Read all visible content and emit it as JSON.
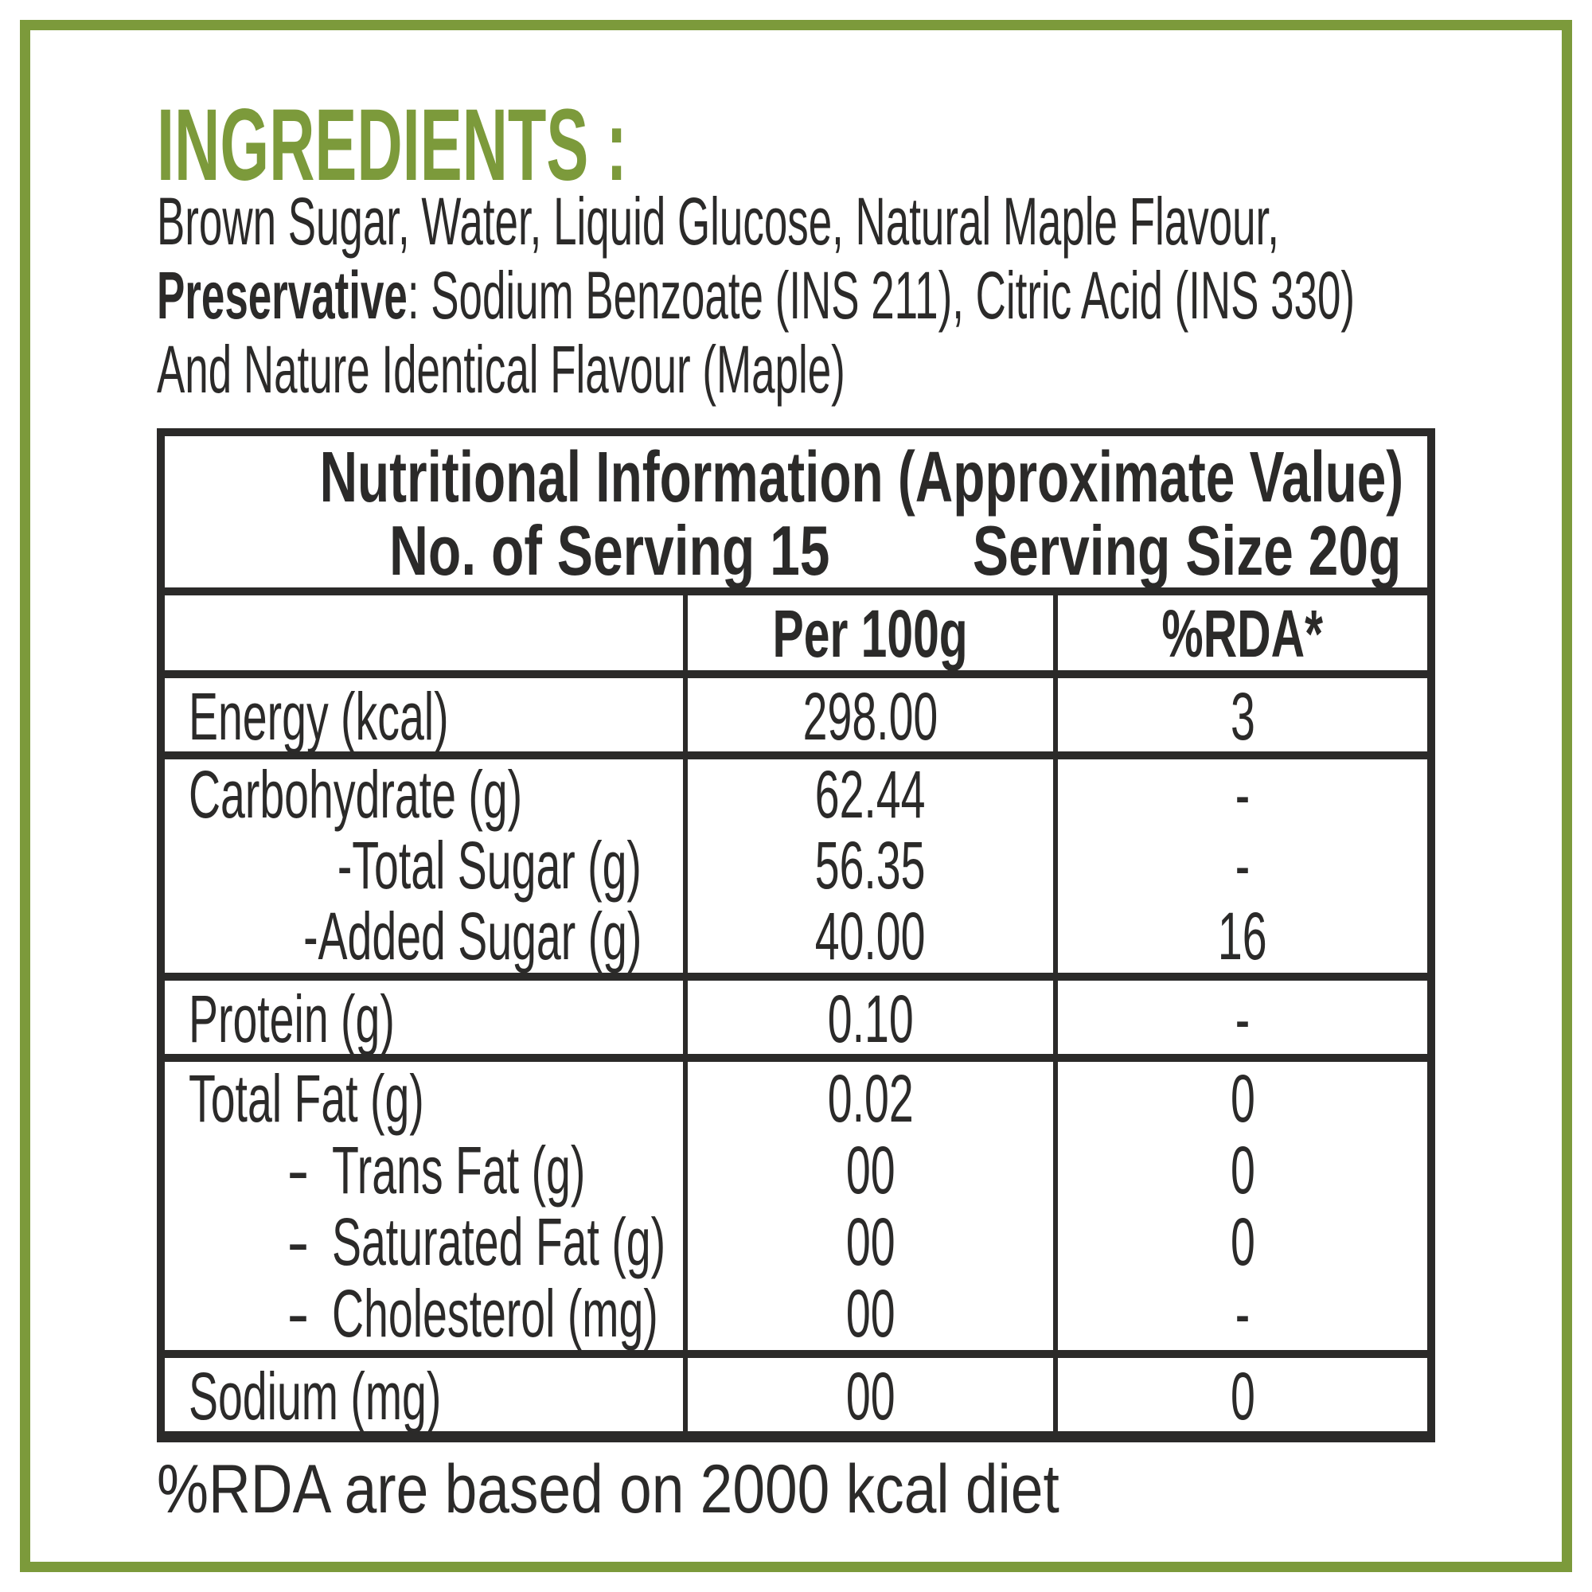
{
  "page": {
    "border_color": "#7C9A3B",
    "text_color": "#2B2A29"
  },
  "ingredients": {
    "title": "INGREDIENTS :",
    "line1": "Brown Sugar, Water, Liquid Glucose, Natural Maple Flavour,",
    "line2_bold": "Preservative",
    "line2_rest": ": Sodium Benzoate (INS 211), Citric Acid (INS 330)",
    "line3": "And Nature Identical Flavour (Maple)"
  },
  "table": {
    "title": "Nutritional Information (Approximate Value)",
    "servings_label": "No. of Serving 15",
    "serving_size_label": "Serving Size 20g",
    "columns": {
      "per100g": "Per 100g",
      "rda": "%RDA*"
    },
    "rows": [
      {
        "label": "Energy (kcal)",
        "per100g": "298.00",
        "rda": "3"
      },
      {
        "label": "Carbohydrate (g)",
        "per100g": "62.44",
        "rda": "-",
        "sub": [
          {
            "label": "-Total Sugar (g)",
            "per100g": "56.35",
            "rda": "-"
          },
          {
            "label": "-Added Sugar (g)",
            "per100g": "40.00",
            "rda": "16"
          }
        ]
      },
      {
        "label": "Protein (g)",
        "per100g": "0.10",
        "rda": "-"
      },
      {
        "label": "Total Fat (g)",
        "per100g": "0.02",
        "rda": "0",
        "sub": [
          {
            "dash": "-",
            "label": "Trans Fat (g)",
            "per100g": "00",
            "rda": "0"
          },
          {
            "dash": "-",
            "label": "Saturated Fat (g)",
            "per100g": "00",
            "rda": "0"
          },
          {
            "dash": "-",
            "label": "Cholesterol (mg)",
            "per100g": "00",
            "rda": "-"
          }
        ]
      },
      {
        "label": "Sodium (mg)",
        "per100g": "00",
        "rda": "0"
      }
    ]
  },
  "footer": {
    "note": "%RDA are based on 2000 kcal diet"
  }
}
